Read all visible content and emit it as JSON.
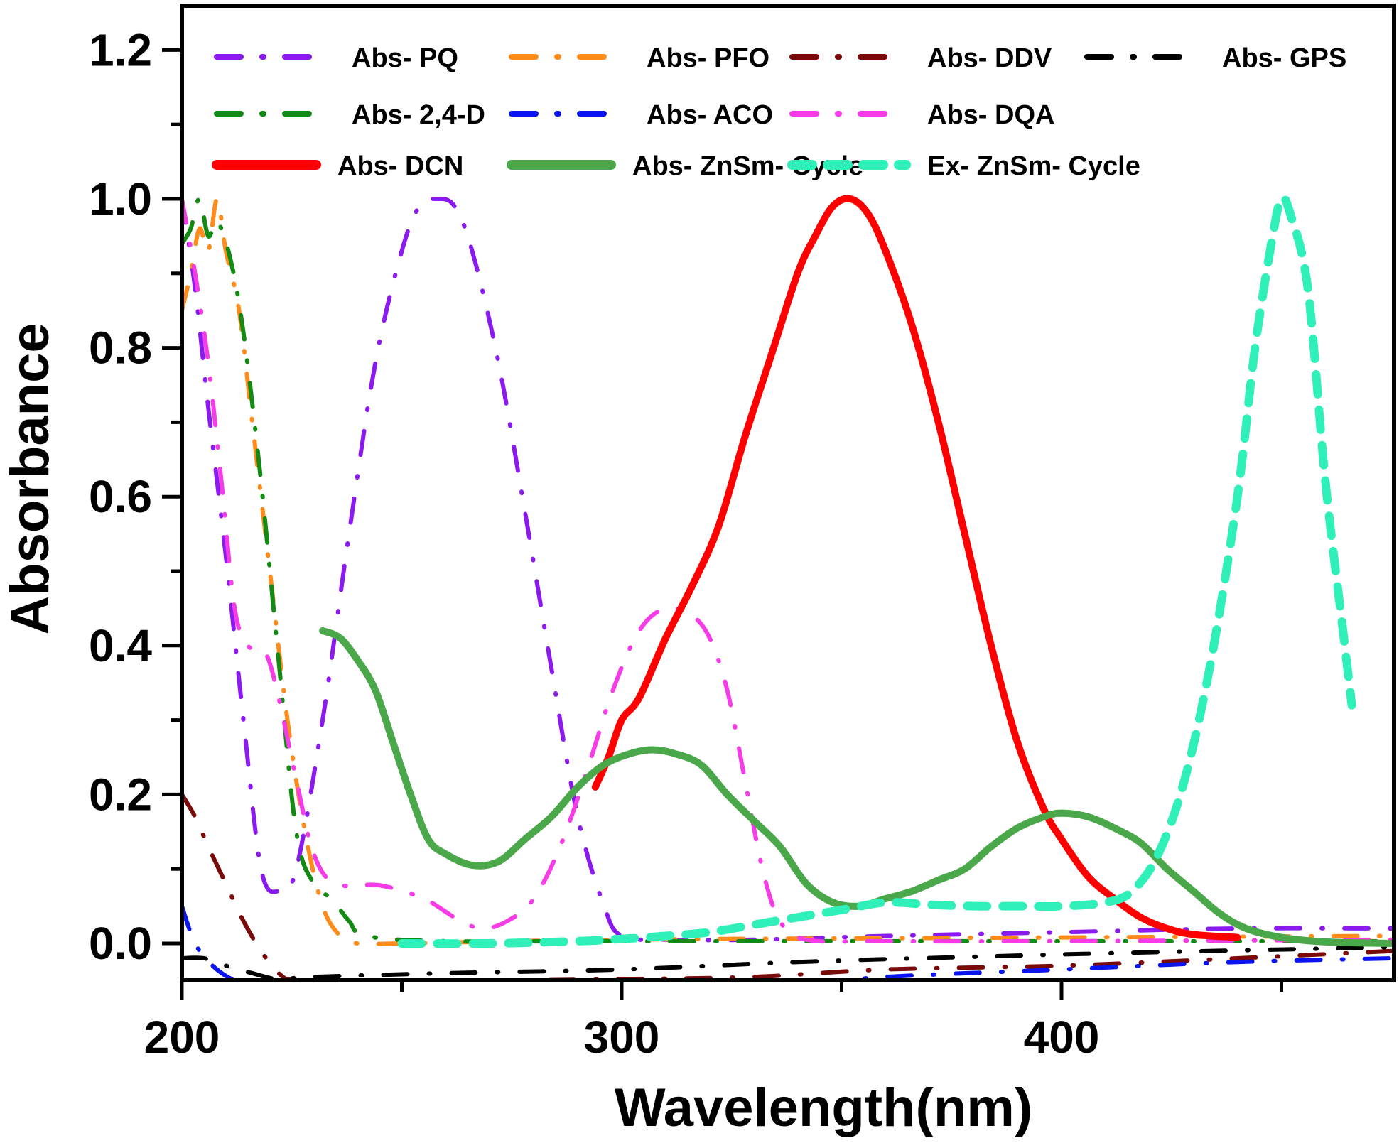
{
  "chart_data": {
    "type": "line",
    "title": "",
    "xlabel": "Wavelength(nm)",
    "ylabel": "Absorbance",
    "xlim": [
      200,
      476
    ],
    "ylim": [
      -0.05,
      1.26
    ],
    "xticks": [
      200,
      300,
      400
    ],
    "xtick_labels": [
      "200",
      "300",
      "400"
    ],
    "x_minor_ticks": [
      250,
      350,
      450
    ],
    "yticks": [
      0.0,
      0.2,
      0.4,
      0.6,
      0.8,
      1.0,
      1.2
    ],
    "ytick_labels": [
      "0.0",
      "0.2",
      "0.4",
      "0.6",
      "0.8",
      "1.0",
      "1.2"
    ],
    "y_minor_ticks": [
      0.1,
      0.3,
      0.5,
      0.7,
      0.9,
      1.1
    ],
    "grid": false,
    "legend_position": "top",
    "series": [
      {
        "name": "Abs- PQ",
        "color": "#8B1AF0",
        "style": "dash-dot",
        "x": [
          200,
          203,
          206,
          210,
          214,
          218,
          222,
          226,
          232,
          238,
          244,
          250,
          254,
          258,
          262,
          266,
          272,
          278,
          284,
          290,
          296,
          300,
          310,
          330,
          360,
          400,
          440,
          476
        ],
        "y": [
          1.0,
          0.88,
          0.72,
          0.52,
          0.3,
          0.1,
          0.07,
          0.1,
          0.3,
          0.55,
          0.78,
          0.93,
          0.99,
          1.0,
          0.99,
          0.93,
          0.78,
          0.58,
          0.37,
          0.17,
          0.05,
          0.01,
          0.005,
          0.005,
          0.01,
          0.015,
          0.02,
          0.02
        ]
      },
      {
        "name": "Abs- PFO",
        "color": "#FF8C1A",
        "style": "dash-dot",
        "x": [
          200,
          202,
          204,
          206,
          208,
          210,
          213,
          216,
          220,
          224,
          228,
          232,
          236,
          240,
          250,
          300,
          400,
          476
        ],
        "y": [
          0.85,
          0.9,
          0.96,
          0.93,
          1.0,
          0.93,
          0.85,
          0.7,
          0.5,
          0.3,
          0.15,
          0.05,
          0.01,
          0.0,
          0.0,
          0.005,
          0.008,
          0.01
        ]
      },
      {
        "name": "Abs- DDV",
        "color": "#7A0A0A",
        "style": "dash-dot",
        "x": [
          200,
          203,
          206,
          210,
          214,
          218,
          222,
          226,
          240,
          270,
          300,
          330,
          360,
          400,
          440,
          476
        ],
        "y": [
          0.2,
          0.17,
          0.13,
          0.08,
          0.03,
          -0.01,
          -0.04,
          -0.05,
          -0.05,
          -0.05,
          -0.048,
          -0.045,
          -0.035,
          -0.03,
          -0.02,
          -0.01
        ]
      },
      {
        "name": "Abs- GPS",
        "color": "#000000",
        "style": "dash-dot",
        "x": [
          200,
          205,
          210,
          216,
          222,
          230,
          260,
          300,
          340,
          380,
          420,
          476
        ],
        "y": [
          -0.02,
          -0.02,
          -0.03,
          -0.04,
          -0.048,
          -0.045,
          -0.04,
          -0.035,
          -0.025,
          -0.018,
          -0.012,
          -0.005
        ]
      },
      {
        "name": "Abs- 2,4-D",
        "color": "#138A13",
        "style": "dash-dot",
        "x": [
          200,
          202,
          204,
          206,
          208,
          211,
          214,
          218,
          222,
          226,
          230,
          234,
          238,
          242,
          260,
          300,
          400,
          476
        ],
        "y": [
          0.94,
          0.96,
          1.0,
          0.95,
          0.97,
          0.92,
          0.82,
          0.62,
          0.38,
          0.15,
          0.08,
          0.06,
          0.03,
          0.01,
          0.003,
          0.003,
          0.003,
          0.003
        ]
      },
      {
        "name": "Abs- ACO",
        "color": "#0A14F0",
        "style": "dash-dot",
        "x": [
          200,
          203,
          207,
          212,
          218,
          230,
          260,
          300,
          330,
          345,
          360,
          400,
          440,
          476
        ],
        "y": [
          0.05,
          0.0,
          -0.03,
          -0.05,
          -0.06,
          -0.07,
          -0.07,
          -0.07,
          -0.065,
          -0.055,
          -0.045,
          -0.035,
          -0.025,
          -0.02
        ]
      },
      {
        "name": "Abs- DQA",
        "color": "#F53CE6",
        "style": "dash-dot",
        "x": [
          200,
          203,
          206,
          209,
          212,
          215,
          219,
          222,
          226,
          230,
          235,
          245,
          255,
          262,
          268,
          274,
          280,
          286,
          292,
          298,
          304,
          310,
          316,
          320,
          324,
          328,
          332,
          336,
          342,
          360,
          400,
          476
        ],
        "y": [
          1.0,
          0.9,
          0.78,
          0.62,
          0.45,
          0.4,
          0.39,
          0.33,
          0.22,
          0.12,
          0.08,
          0.078,
          0.06,
          0.035,
          0.02,
          0.03,
          0.06,
          0.13,
          0.23,
          0.34,
          0.42,
          0.45,
          0.44,
          0.41,
          0.34,
          0.22,
          0.1,
          0.03,
          0.005,
          0.003,
          0.003,
          0.005
        ]
      },
      {
        "name": "Abs- DCN",
        "color": "#FF0000",
        "style": "solid",
        "x": [
          294,
          297,
          300,
          304,
          310,
          316,
          322,
          328,
          334,
          340,
          344,
          348,
          352,
          356,
          360,
          366,
          372,
          378,
          384,
          390,
          396,
          400,
          406,
          412,
          418,
          424,
          430,
          440
        ],
        "y": [
          0.21,
          0.25,
          0.3,
          0.33,
          0.41,
          0.48,
          0.56,
          0.68,
          0.79,
          0.9,
          0.95,
          0.99,
          1.0,
          0.98,
          0.93,
          0.83,
          0.7,
          0.55,
          0.4,
          0.27,
          0.18,
          0.14,
          0.09,
          0.06,
          0.035,
          0.02,
          0.012,
          0.008
        ]
      },
      {
        "name": "Abs- ZnSm- Cycle",
        "color": "#4AA84A",
        "style": "solid",
        "x": [
          232,
          236,
          240,
          244,
          248,
          252,
          256,
          260,
          266,
          272,
          278,
          284,
          290,
          296,
          302,
          307,
          312,
          318,
          324,
          330,
          336,
          342,
          348,
          354,
          360,
          366,
          372,
          378,
          384,
          390,
          396,
          400,
          406,
          412,
          418,
          424,
          430,
          436,
          442,
          450,
          460,
          476
        ],
        "y": [
          0.42,
          0.41,
          0.38,
          0.34,
          0.27,
          0.2,
          0.14,
          0.12,
          0.105,
          0.11,
          0.14,
          0.17,
          0.21,
          0.24,
          0.255,
          0.26,
          0.255,
          0.24,
          0.2,
          0.165,
          0.13,
          0.08,
          0.055,
          0.05,
          0.06,
          0.07,
          0.085,
          0.1,
          0.13,
          0.155,
          0.17,
          0.175,
          0.17,
          0.155,
          0.135,
          0.1,
          0.07,
          0.04,
          0.02,
          0.008,
          0.002,
          0.0
        ]
      },
      {
        "name": "Ex- ZnSm- Cycle",
        "color": "#2EF0B8",
        "style": "dash",
        "x": [
          250,
          270,
          290,
          300,
          310,
          320,
          330,
          340,
          350,
          360,
          370,
          380,
          390,
          400,
          410,
          416,
          422,
          428,
          434,
          440,
          444,
          448,
          450,
          452,
          456,
          460,
          464,
          466
        ],
        "y": [
          0.0,
          0.0,
          0.003,
          0.006,
          0.01,
          0.015,
          0.025,
          0.035,
          0.045,
          0.055,
          0.052,
          0.05,
          0.05,
          0.05,
          0.055,
          0.07,
          0.12,
          0.22,
          0.38,
          0.6,
          0.8,
          0.95,
          1.0,
          0.98,
          0.88,
          0.62,
          0.42,
          0.32
        ]
      }
    ]
  }
}
